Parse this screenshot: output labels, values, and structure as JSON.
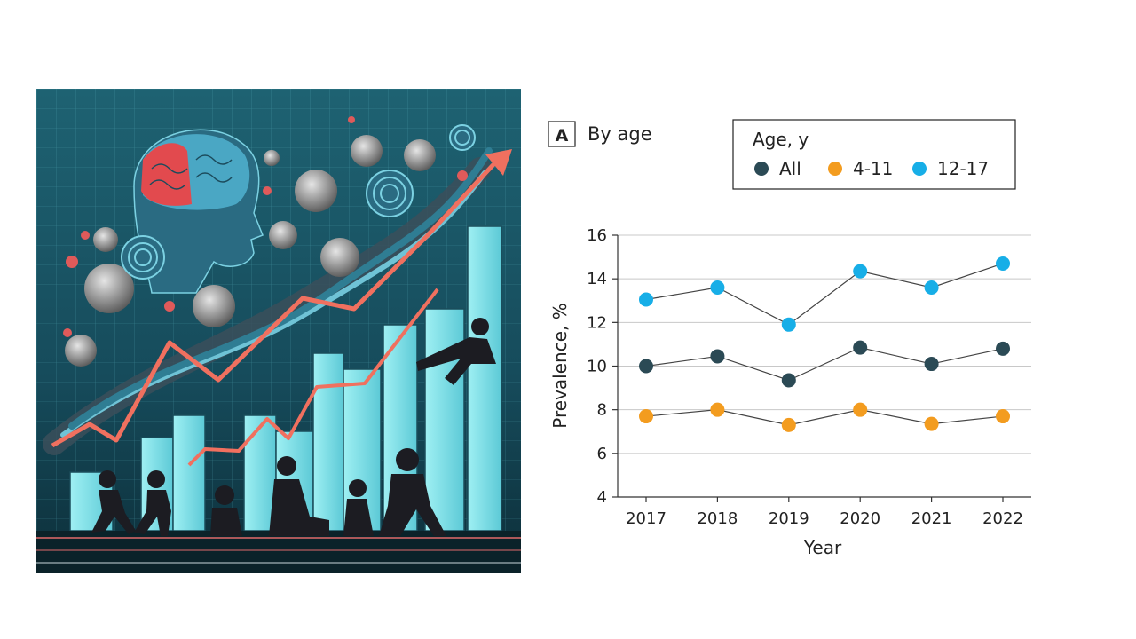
{
  "illustration": {
    "description_icon": "brain-head-rising-chart-children-illustration",
    "colors": {
      "bg_dark": "#0f3a48",
      "bg_mid": "#1d5f70",
      "bar": "#8ee7ee",
      "arrow": "#f0705f",
      "brain_blue": "#4aa7c4",
      "brain_red": "#e24a4e"
    }
  },
  "panel": {
    "letter": "A",
    "title": "By age"
  },
  "legend": {
    "title": "Age, y",
    "items": [
      {
        "label": "All",
        "color": "#2b4a55"
      },
      {
        "label": "4-11",
        "color": "#f39c1f"
      },
      {
        "label": "12-17",
        "color": "#17aee7"
      }
    ]
  },
  "chart_data": {
    "type": "line",
    "x": [
      "2017",
      "2018",
      "2019",
      "2020",
      "2021",
      "2022"
    ],
    "series": [
      {
        "name": "All",
        "color": "#2b4a55",
        "values": [
          10.0,
          10.45,
          9.35,
          10.85,
          10.1,
          10.8
        ]
      },
      {
        "name": "4-11",
        "color": "#f39c1f",
        "values": [
          7.7,
          8.0,
          7.3,
          8.0,
          7.35,
          7.7
        ]
      },
      {
        "name": "12-17",
        "color": "#17aee7",
        "values": [
          13.05,
          13.6,
          11.9,
          14.35,
          13.6,
          14.7
        ]
      }
    ],
    "xlabel": "Year",
    "ylabel": "Prevalence, %",
    "ylim": [
      4,
      16
    ],
    "yticks": [
      4,
      6,
      8,
      10,
      12,
      14,
      16
    ],
    "grid": true,
    "legend_position": "top-right"
  }
}
